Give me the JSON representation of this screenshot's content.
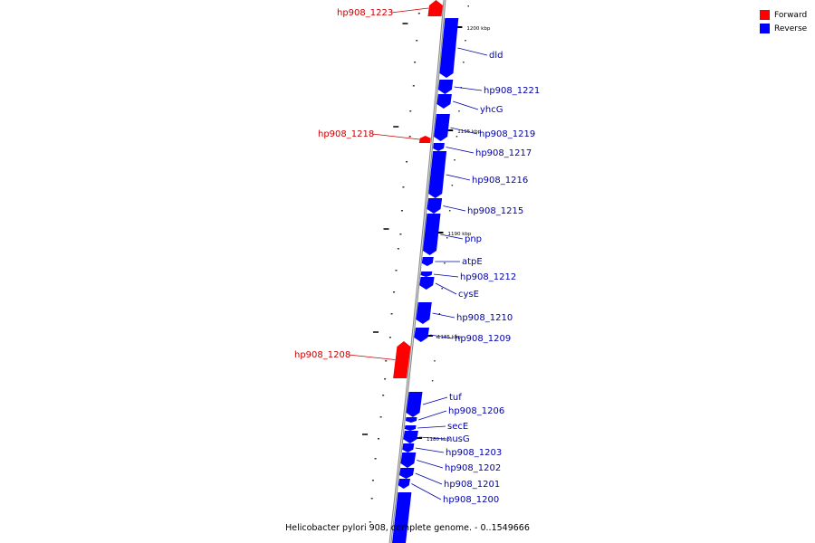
{
  "colors": {
    "forward": "#ff0000",
    "reverse": "#0000ff",
    "backbone": "#888888",
    "forward_label": "#cc0000",
    "reverse_label": "#0000aa"
  },
  "legend": {
    "forward": "Forward",
    "reverse": "Reverse"
  },
  "caption": "Helicobacter pylori 908, complete genome. - 0..1549666",
  "scale_labels": [
    "1200 kbp",
    "1195 kbp",
    "1190 kbp",
    "1185 kbp",
    "1180 kbp"
  ],
  "genes": [
    {
      "name": "hp908_1223",
      "strand": "forward"
    },
    {
      "name": "dld",
      "strand": "reverse"
    },
    {
      "name": "hp908_1221",
      "strand": "reverse"
    },
    {
      "name": "yhcG",
      "strand": "reverse"
    },
    {
      "name": "hp908_1219",
      "strand": "reverse"
    },
    {
      "name": "hp908_1218",
      "strand": "forward"
    },
    {
      "name": "hp908_1217",
      "strand": "reverse"
    },
    {
      "name": "hp908_1216",
      "strand": "reverse"
    },
    {
      "name": "hp908_1215",
      "strand": "reverse"
    },
    {
      "name": "pnp",
      "strand": "reverse"
    },
    {
      "name": "atpE",
      "strand": "reverse"
    },
    {
      "name": "hp908_1212",
      "strand": "reverse"
    },
    {
      "name": "cysE",
      "strand": "reverse"
    },
    {
      "name": "hp908_1210",
      "strand": "reverse"
    },
    {
      "name": "hp908_1209",
      "strand": "reverse"
    },
    {
      "name": "hp908_1208",
      "strand": "forward"
    },
    {
      "name": "tuf",
      "strand": "reverse"
    },
    {
      "name": "hp908_1206",
      "strand": "reverse"
    },
    {
      "name": "secE",
      "strand": "reverse"
    },
    {
      "name": "nusG",
      "strand": "reverse"
    },
    {
      "name": "hp908_1203",
      "strand": "reverse"
    },
    {
      "name": "hp908_1202",
      "strand": "reverse"
    },
    {
      "name": "hp908_1201",
      "strand": "reverse"
    },
    {
      "name": "hp908_1200",
      "strand": "reverse"
    }
  ]
}
